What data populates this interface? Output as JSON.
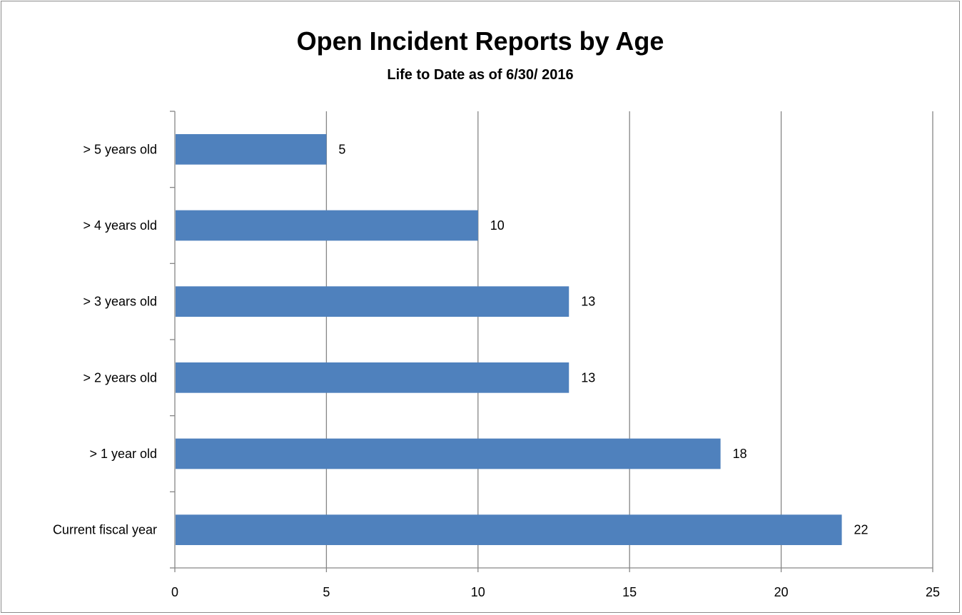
{
  "chart_data": {
    "type": "bar",
    "orientation": "horizontal",
    "title": "Open Incident Reports by Age",
    "subtitle": "Life to Date as of 6/30/ 2016",
    "xlabel": "",
    "ylabel": "",
    "categories": [
      "> 5 years old",
      "> 4 years old",
      "> 3 years old",
      "> 2 years old",
      "> 1 year old",
      "Current fiscal year"
    ],
    "values": [
      5,
      10,
      13,
      13,
      18,
      22
    ],
    "xlim": [
      0,
      25
    ],
    "x_ticks": [
      "0",
      "5",
      "10",
      "15",
      "20",
      "25"
    ],
    "grid": "vertical",
    "legend": "none",
    "data_labels": true,
    "bar_color": "#4f81bd",
    "grid_color": "#868686"
  }
}
